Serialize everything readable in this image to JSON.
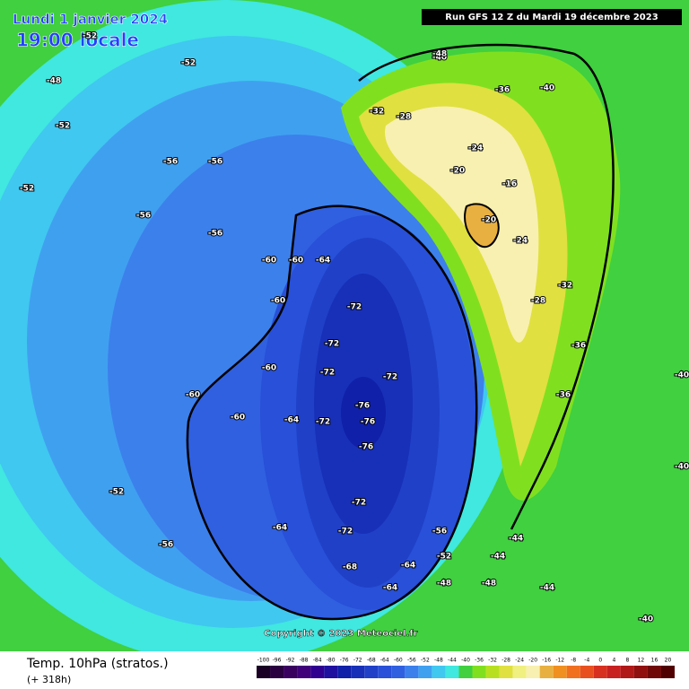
{
  "header": {
    "date": "Lundi 1 janvier 2024",
    "time": "19:00 locale",
    "run": "Run GFS 12 Z du Mardi 19 décembre 2023",
    "copyright": "Copyright © 2023 Meteociel.fr"
  },
  "footer": {
    "title": "Temp. 10hPa (stratos.)",
    "lead": "(+ 318h)"
  },
  "map": {
    "labels": [
      -52,
      -52,
      -48,
      -52,
      -56,
      -56,
      -52,
      -56,
      -56,
      -60,
      -64,
      -60,
      -72,
      -72,
      -72,
      -72,
      -76,
      -76,
      -76,
      -72,
      -64,
      -60,
      -60,
      -60,
      -64,
      -72,
      -72,
      -68,
      -64,
      -64,
      -56,
      -52,
      -48,
      -48,
      -44,
      -40,
      -40,
      -36,
      -32,
      -28,
      -24,
      -20,
      -16,
      -20,
      -24,
      -28,
      -32,
      -36,
      -36,
      -40,
      -40,
      -44,
      -44,
      -40,
      -48,
      -52,
      -56,
      -60
    ]
  },
  "colorbar": {
    "ticks": [
      -100,
      -96,
      -92,
      -88,
      -84,
      -80,
      -76,
      -72,
      -68,
      -64,
      -60,
      -56,
      -52,
      -48,
      -44,
      -40,
      -36,
      -32,
      -28,
      -24,
      -20,
      -16,
      -12,
      -8,
      -4,
      0,
      4,
      8,
      12,
      16,
      20
    ],
    "colors": [
      "#1a0024",
      "#2a0040",
      "#3a0060",
      "#40007a",
      "#300090",
      "#2010a0",
      "#1020a8",
      "#1830b8",
      "#2040c8",
      "#2850d8",
      "#3060e0",
      "#3c80ec",
      "#40a0f0",
      "#40c8f0",
      "#40e8e0",
      "#40d040",
      "#80e020",
      "#b8e020",
      "#e0e040",
      "#f0f080",
      "#f8f0b0",
      "#e8b040",
      "#f09020",
      "#f07020",
      "#e85020",
      "#d83020",
      "#c82020",
      "#b01818",
      "#901010",
      "#700808",
      "#500000"
    ]
  }
}
